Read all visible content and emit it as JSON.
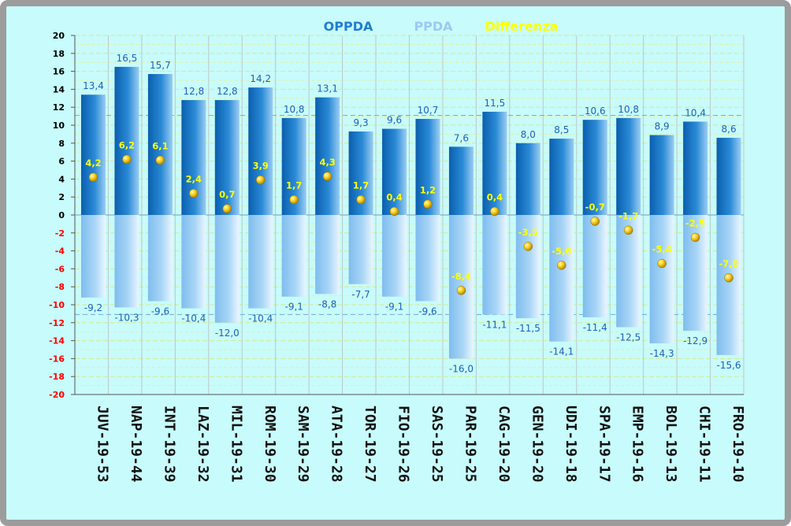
{
  "chart_data": {
    "type": "bar",
    "title": "",
    "xlabel": "",
    "ylabel": "",
    "ylim": [
      -20,
      20
    ],
    "y_ticks": [
      20,
      18,
      16,
      14,
      12,
      10,
      8,
      6,
      4,
      2,
      0,
      -2,
      -4,
      -6,
      -8,
      -10,
      -12,
      -14,
      -16,
      -18,
      -20
    ],
    "grid": true,
    "legend": [
      "OPPDA",
      "PPDA",
      "Differenza"
    ],
    "legend_position": "top-center",
    "categories": [
      "JUV-19-53",
      "NAP-19-44",
      "INT-19-39",
      "LAZ-19-32",
      "MIL-19-31",
      "ROM-19-30",
      "SAM-19-29",
      "ATA-19-28",
      "TOR-19-27",
      "FIO-19-26",
      "SAS-19-25",
      "PAR-19-25",
      "CAG-19-20",
      "GEN-19-20",
      "UDI-19-18",
      "SPA-19-17",
      "EMP-19-16",
      "BOL-19-13",
      "CHI-19-11",
      "FRO-19-10"
    ],
    "series": [
      {
        "name": "OPPDA",
        "values": [
          13.4,
          16.5,
          15.7,
          12.8,
          12.8,
          14.2,
          10.8,
          13.1,
          9.3,
          9.6,
          10.7,
          7.6,
          11.5,
          8.0,
          8.5,
          10.6,
          10.8,
          8.9,
          10.4,
          8.6
        ],
        "labels": [
          "13,4",
          "16,5",
          "15,7",
          "12,8",
          "12,8",
          "14,2",
          "10,8",
          "13,1",
          "9,3",
          "9,6",
          "10,7",
          "7,6",
          "11,5",
          "8,0",
          "8,5",
          "10,6",
          "10,8",
          "8,9",
          "10,4",
          "8,6"
        ]
      },
      {
        "name": "PPDA",
        "values": [
          -9.2,
          -10.3,
          -9.6,
          -10.4,
          -12.0,
          -10.4,
          -9.1,
          -8.8,
          -7.7,
          -9.1,
          -9.6,
          -16.0,
          -11.1,
          -11.5,
          -14.1,
          -11.4,
          -12.5,
          -14.3,
          -12.9,
          -15.6
        ],
        "labels": [
          "-9,2",
          "-10,3",
          "-9,6",
          "-10,4",
          "-12,0",
          "-10,4",
          "-9,1",
          "-8,8",
          "-7,7",
          "-9,1",
          "-9,6",
          "-16,0",
          "-11,1",
          "-11,5",
          "-14,1",
          "-11,4",
          "-12,5",
          "-14,3",
          "-12,9",
          "-15,6"
        ]
      },
      {
        "name": "Differenza",
        "values": [
          4.2,
          6.2,
          6.1,
          2.4,
          0.7,
          3.9,
          1.7,
          4.3,
          1.7,
          0.4,
          1.2,
          -8.4,
          0.4,
          -3.5,
          -5.6,
          -0.7,
          -1.7,
          -5.4,
          -2.5,
          -7.0
        ],
        "labels": [
          "4,2",
          "6,2",
          "6,1",
          "2,4",
          "0,7",
          "3,9",
          "1,7",
          "4,3",
          "1,7",
          "0,4",
          "1,2",
          "-8,4",
          "0,4",
          "-3,5",
          "-5,6",
          "-0,7",
          "-1,7",
          "-5,4",
          "-2,5",
          "-7,0"
        ]
      }
    ],
    "reference_lines": [
      11.1,
      -11.1
    ],
    "colors": {
      "oppda": "#1a7fcf",
      "ppda": "#a6d4f6",
      "differenza": "#ffff00",
      "legend_oppda": "#1e7fd0",
      "legend_ppda": "#9cc9f2",
      "positive_tick": "#000000",
      "negative_tick": "#ff0000",
      "background": "#c8fbfb"
    }
  }
}
